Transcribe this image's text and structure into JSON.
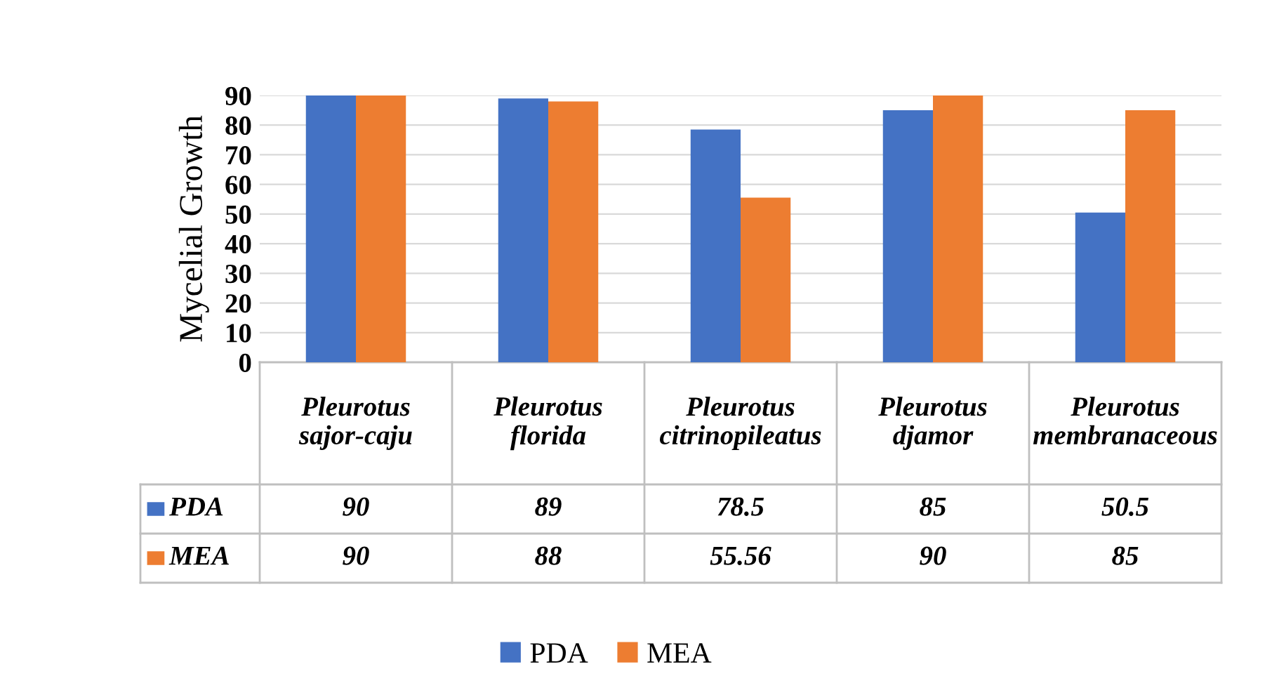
{
  "chart_data": {
    "type": "bar",
    "ylabel": "Mycelial Growth",
    "categories": [
      "Pleurotus sajor-caju",
      "Pleurotus florida",
      "Pleurotus citrinopileatus",
      "Pleurotus djamor",
      "Pleurotus membranaceous"
    ],
    "series": [
      {
        "name": "PDA",
        "color": "#4472c4",
        "values": [
          90,
          89,
          78.5,
          85,
          50.5
        ]
      },
      {
        "name": "MEA",
        "color": "#ed7d31",
        "values": [
          90,
          88,
          55.56,
          90,
          85
        ]
      }
    ],
    "ylim": [
      0,
      90
    ],
    "yticks": [
      0,
      10,
      20,
      30,
      40,
      50,
      60,
      70,
      80,
      90
    ],
    "grid": "y",
    "legend": "bottom",
    "data_labels": true
  }
}
